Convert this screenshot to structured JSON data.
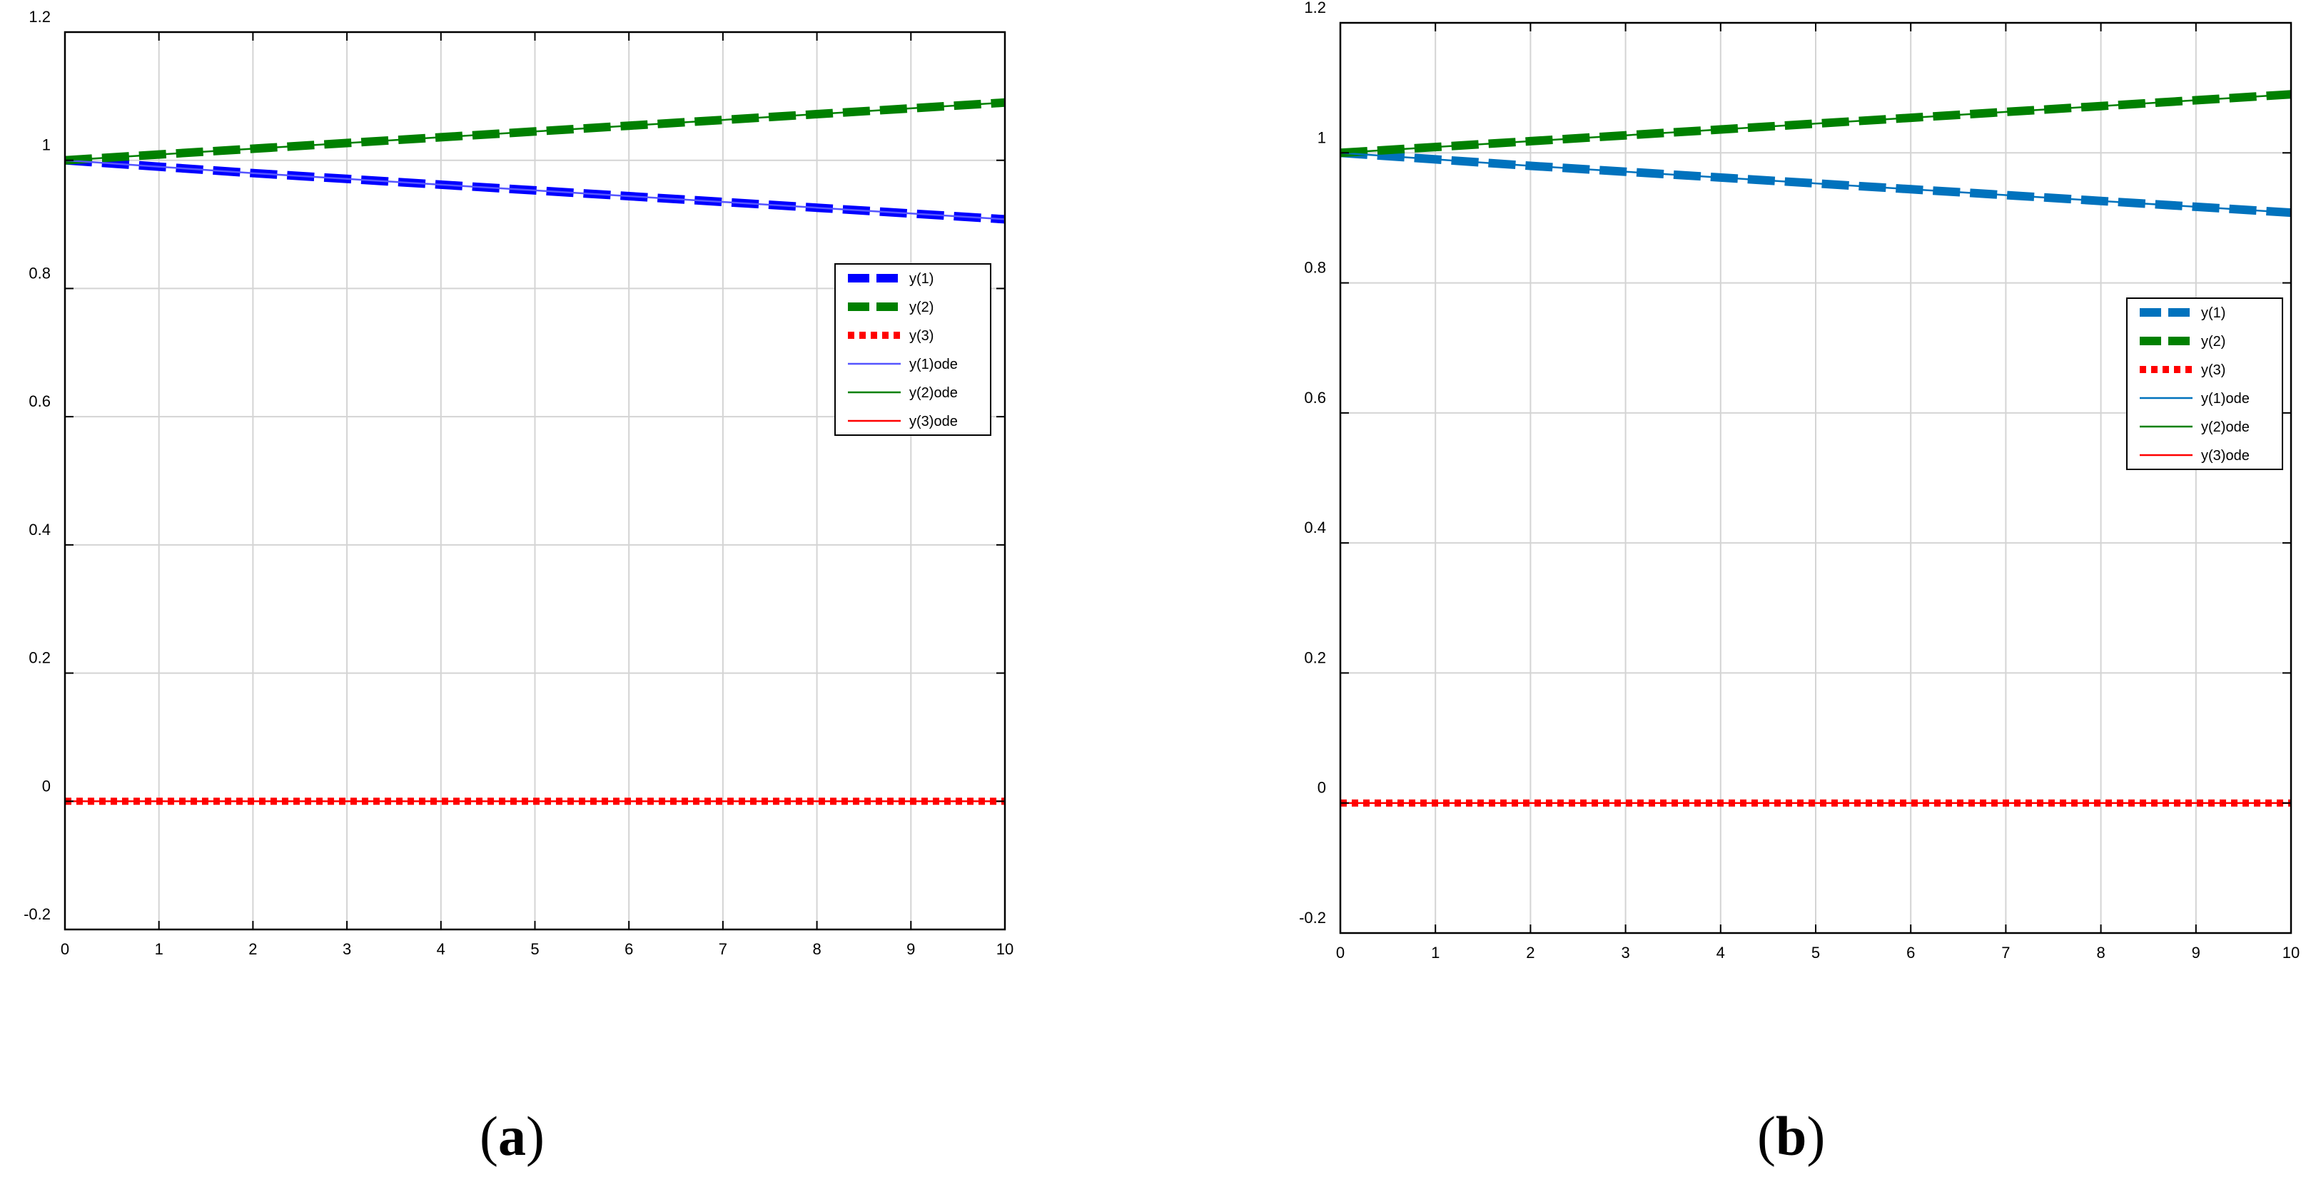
{
  "chart_data": [
    {
      "type": "line",
      "panel": "a",
      "xlim": [
        0,
        10
      ],
      "ylim": [
        -0.2,
        1.2
      ],
      "xticks": [
        0,
        1,
        2,
        3,
        4,
        5,
        6,
        7,
        8,
        9,
        10
      ],
      "yticks": [
        "-0.2",
        "0",
        "0.2",
        "0.4",
        "0.6",
        "0.8",
        "1",
        "1.2"
      ],
      "grid": true,
      "legend_position": "right",
      "x": [
        0,
        1,
        2,
        3,
        4,
        5,
        6,
        7,
        8,
        9,
        10
      ],
      "series": [
        {
          "name": "y(1)",
          "color": "#0000ff",
          "style": "thick-dashed",
          "values": [
            1.0,
            0.99,
            0.98,
            0.971,
            0.962,
            0.953,
            0.944,
            0.935,
            0.926,
            0.917,
            0.908
          ]
        },
        {
          "name": "y(2)",
          "color": "#008000",
          "style": "thick-dashed",
          "values": [
            1.0,
            1.009,
            1.018,
            1.027,
            1.036,
            1.045,
            1.054,
            1.063,
            1.072,
            1.081,
            1.09
          ]
        },
        {
          "name": "y(3)",
          "color": "#ff0000",
          "style": "thick-dotted",
          "values": [
            0,
            0,
            0,
            0,
            0,
            0,
            0,
            0,
            0,
            0,
            0
          ]
        },
        {
          "name": "y(1)ode",
          "color": "#5555ff",
          "style": "thin-solid",
          "values": [
            1.0,
            0.99,
            0.98,
            0.971,
            0.962,
            0.953,
            0.944,
            0.935,
            0.926,
            0.917,
            0.908
          ]
        },
        {
          "name": "y(2)ode",
          "color": "#008000",
          "style": "thin-solid",
          "values": [
            1.0,
            1.009,
            1.018,
            1.027,
            1.036,
            1.045,
            1.054,
            1.063,
            1.072,
            1.081,
            1.09
          ]
        },
        {
          "name": "y(3)ode",
          "color": "#ff0000",
          "style": "thin-solid",
          "values": [
            0,
            0,
            0,
            0,
            0,
            0,
            0,
            0,
            0,
            0,
            0
          ]
        }
      ]
    },
    {
      "type": "line",
      "panel": "b",
      "xlim": [
        0,
        10
      ],
      "ylim": [
        -0.2,
        1.2
      ],
      "xticks": [
        0,
        1,
        2,
        3,
        4,
        5,
        6,
        7,
        8,
        9,
        10
      ],
      "yticks": [
        "-0.2",
        "0",
        "0.2",
        "0.4",
        "0.6",
        "0.8",
        "1",
        "1.2"
      ],
      "grid": true,
      "legend_position": "right",
      "x": [
        0,
        1,
        2,
        3,
        4,
        5,
        6,
        7,
        8,
        9,
        10
      ],
      "series": [
        {
          "name": "y(1)",
          "color": "#0072bd",
          "style": "thick-dashed",
          "values": [
            1.0,
            0.99,
            0.98,
            0.971,
            0.962,
            0.953,
            0.944,
            0.935,
            0.926,
            0.917,
            0.908
          ]
        },
        {
          "name": "y(2)",
          "color": "#008000",
          "style": "thick-dashed",
          "values": [
            1.0,
            1.009,
            1.018,
            1.027,
            1.036,
            1.045,
            1.054,
            1.063,
            1.072,
            1.081,
            1.09
          ]
        },
        {
          "name": "y(3)",
          "color": "#ff0000",
          "style": "thick-dotted",
          "values": [
            0,
            0,
            0,
            0,
            0,
            0,
            0,
            0,
            0,
            0,
            0
          ]
        },
        {
          "name": "y(1)ode",
          "color": "#0072bd",
          "style": "thin-solid",
          "values": [
            1.0,
            0.99,
            0.98,
            0.971,
            0.962,
            0.953,
            0.944,
            0.935,
            0.926,
            0.917,
            0.908
          ]
        },
        {
          "name": "y(2)ode",
          "color": "#008000",
          "style": "thin-solid",
          "values": [
            1.0,
            1.009,
            1.018,
            1.027,
            1.036,
            1.045,
            1.054,
            1.063,
            1.072,
            1.081,
            1.09
          ]
        },
        {
          "name": "y(3)ode",
          "color": "#ff0000",
          "style": "thin-solid",
          "values": [
            0,
            0,
            0,
            0,
            0,
            0,
            0,
            0,
            0,
            0,
            0
          ]
        }
      ]
    }
  ],
  "panel_labels": {
    "a": {
      "open": "(",
      "letter": "a",
      "close": ")"
    },
    "b": {
      "open": "(",
      "letter": "b",
      "close": ")"
    }
  }
}
